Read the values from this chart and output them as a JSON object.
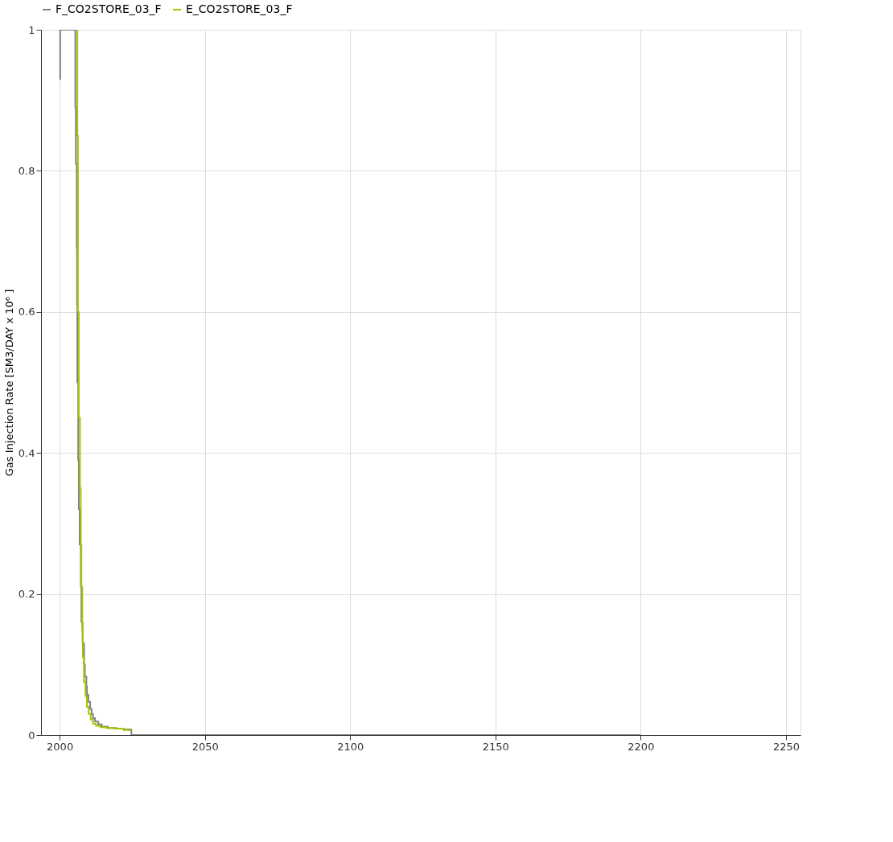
{
  "chart_data": {
    "type": "step",
    "ylabel": "Gas Injection Rate [SM3/DAY x 10⁶ ]",
    "xlim": [
      1993.6,
      2255
    ],
    "xticks": [
      2000,
      2050,
      2100,
      2150,
      2200,
      2250
    ],
    "ylim": [
      0,
      1
    ],
    "yticks": [
      0,
      0.2,
      0.4,
      0.6,
      0.8,
      1
    ],
    "grid": true,
    "legend": "top",
    "line_style": "solid",
    "marker": "none",
    "series": [
      {
        "name": "F_CO2STORE_03_F",
        "color": "#808080",
        "x": [
          2000,
          2000.2,
          2005.4,
          2005.6,
          2005.9,
          2006.0,
          2006.1,
          2006.4,
          2006.6,
          2006.9,
          2007.3,
          2007.5,
          2007.9,
          2008.4,
          2008.7,
          2009.2,
          2009.4,
          2009.9,
          2010.5,
          2011,
          2011.5,
          2012.2,
          2013.3,
          2014.5,
          2016.6,
          2019.6,
          2022,
          2024.7,
          2200
        ],
        "values": [
          0.93,
          1,
          0.89,
          0.81,
          0.69,
          0.61,
          0.5,
          0.39,
          0.32,
          0.27,
          0.21,
          0.16,
          0.13,
          0.1,
          0.083,
          0.069,
          0.057,
          0.047,
          0.037,
          0.03,
          0.024,
          0.019,
          0.015,
          0.012,
          0.01,
          0.009,
          0.008,
          0,
          0
        ]
      },
      {
        "name": "E_CO2STORE_03_F",
        "color": "#a5c400",
        "x": [
          2005.8,
          2006.1,
          2006.3,
          2006.6,
          2007.0,
          2007.3,
          2007.5,
          2007.8,
          2008.0,
          2008.4,
          2008.9,
          2009.4,
          2010,
          2010.7,
          2011.5,
          2012.5,
          2014,
          2016,
          2019,
          2022,
          2024.5
        ],
        "values": [
          1,
          0.85,
          0.6,
          0.45,
          0.35,
          0.27,
          0.21,
          0.15,
          0.11,
          0.075,
          0.055,
          0.04,
          0.03,
          0.022,
          0.016,
          0.013,
          0.011,
          0.01,
          0.009,
          0.007,
          0.006
        ]
      }
    ]
  }
}
